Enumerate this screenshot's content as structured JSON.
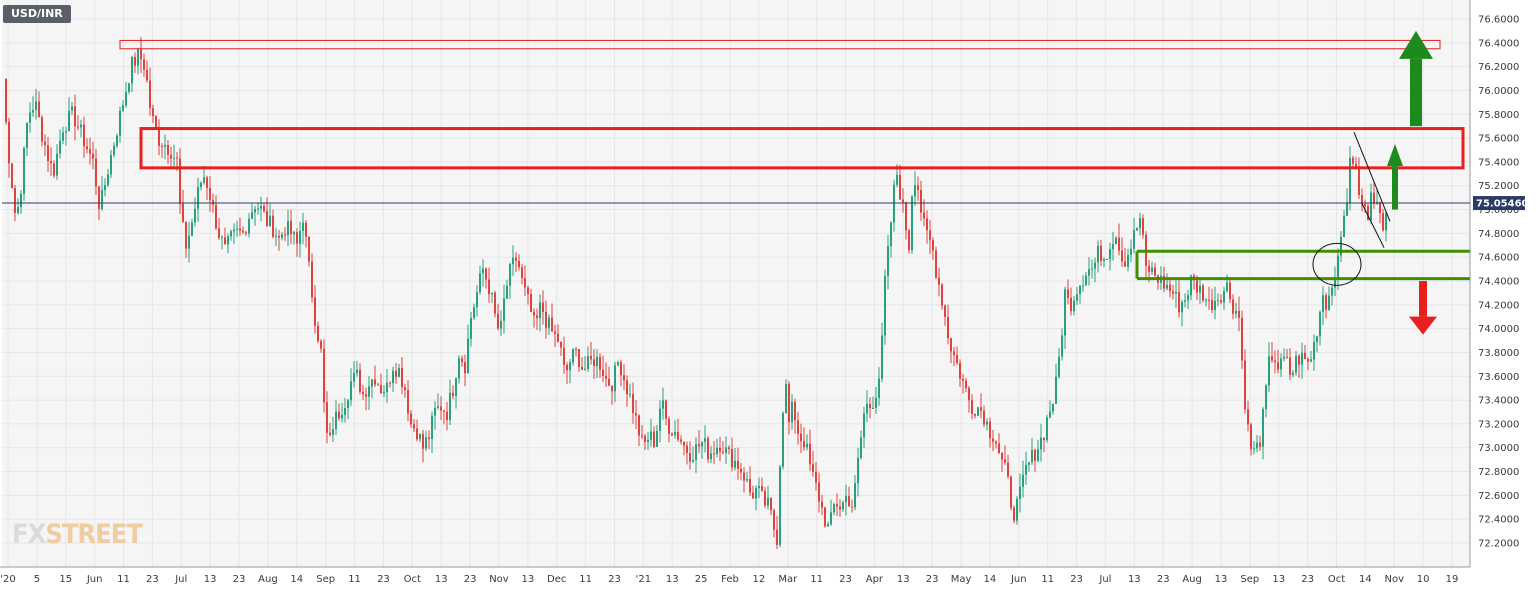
{
  "symbol": "USD/INR",
  "watermark": {
    "fx": "FX",
    "street": "STREET"
  },
  "colors": {
    "up": "#26a17b",
    "down": "#e0433f",
    "grid": "#e6e6e6",
    "background": "#f5f5f5",
    "current_price_line": "#2b3a67",
    "resistance_zone": "#e61f1f",
    "support_zone": "#3f8f00",
    "arrow_up": "#1d8a1d",
    "arrow_down": "#e61f1f"
  },
  "current_price": "75.05460",
  "chart_data": {
    "type": "candlestick",
    "title": "USD/INR",
    "ylim": [
      72.0,
      76.7
    ],
    "y_ticks": [
      "72.2000",
      "72.4000",
      "72.6000",
      "72.8000",
      "73.0000",
      "73.2000",
      "73.4000",
      "73.6000",
      "73.8000",
      "74.0000",
      "74.2000",
      "74.4000",
      "74.6000",
      "74.8000",
      "75.0000",
      "75.2000",
      "75.4000",
      "75.6000",
      "75.8000",
      "76.0000",
      "76.2000",
      "76.4000",
      "76.6000"
    ],
    "x_ticks": [
      "'20",
      "5",
      "15",
      "Jun",
      "11",
      "23",
      "Jul",
      "13",
      "23",
      "Aug",
      "14",
      "Sep",
      "11",
      "23",
      "Oct",
      "13",
      "23",
      "Nov",
      "13",
      "Dec",
      "11",
      "23",
      "'21",
      "13",
      "25",
      "Feb",
      "12",
      "Mar",
      "11",
      "23",
      "Apr",
      "13",
      "23",
      "May",
      "14",
      "Jun",
      "11",
      "23",
      "Jul",
      "13",
      "23",
      "Aug",
      "13",
      "Sep",
      "13",
      "23",
      "Oct",
      "14",
      "Nov",
      "10",
      "19"
    ],
    "close_path": [
      [
        0,
        76.1
      ],
      [
        4,
        75.6
      ],
      [
        8,
        75.3
      ],
      [
        13,
        74.9
      ],
      [
        18,
        75.2
      ],
      [
        25,
        75.8
      ],
      [
        32,
        75.9
      ],
      [
        40,
        75.6
      ],
      [
        50,
        75.3
      ],
      [
        60,
        75.7
      ],
      [
        70,
        75.8
      ],
      [
        80,
        75.6
      ],
      [
        90,
        75.4
      ],
      [
        97,
        75.0
      ],
      [
        104,
        75.3
      ],
      [
        112,
        75.6
      ],
      [
        120,
        75.9
      ],
      [
        128,
        76.2
      ],
      [
        136,
        76.3
      ],
      [
        142,
        76.2
      ],
      [
        148,
        75.8
      ],
      [
        155,
        75.6
      ],
      [
        162,
        75.55
      ],
      [
        168,
        75.5
      ],
      [
        174,
        75.4
      ],
      [
        178,
        74.9
      ],
      [
        183,
        74.7
      ],
      [
        188,
        74.85
      ],
      [
        194,
        75.1
      ],
      [
        200,
        75.3
      ],
      [
        205,
        75.2
      ],
      [
        210,
        75.0
      ],
      [
        216,
        74.8
      ],
      [
        222,
        74.65
      ],
      [
        228,
        74.75
      ],
      [
        234,
        74.8
      ],
      [
        240,
        74.8
      ],
      [
        246,
        74.95
      ],
      [
        252,
        75.05
      ],
      [
        258,
        75.0
      ],
      [
        264,
        74.9
      ],
      [
        270,
        74.85
      ],
      [
        276,
        74.75
      ],
      [
        282,
        74.85
      ],
      [
        288,
        74.8
      ],
      [
        294,
        74.7
      ],
      [
        300,
        74.95
      ],
      [
        306,
        74.5
      ],
      [
        312,
        74.1
      ],
      [
        318,
        73.8
      ],
      [
        322,
        73.2
      ],
      [
        326,
        73.0
      ],
      [
        330,
        73.2
      ],
      [
        336,
        73.3
      ],
      [
        342,
        73.4
      ],
      [
        348,
        73.55
      ],
      [
        354,
        73.6
      ],
      [
        360,
        73.45
      ],
      [
        366,
        73.55
      ],
      [
        372,
        73.6
      ],
      [
        378,
        73.5
      ],
      [
        384,
        73.5
      ],
      [
        390,
        73.7
      ],
      [
        396,
        73.65
      ],
      [
        402,
        73.5
      ],
      [
        408,
        73.2
      ],
      [
        414,
        73.15
      ],
      [
        420,
        73.0
      ],
      [
        426,
        73.1
      ],
      [
        432,
        73.3
      ],
      [
        438,
        73.35
      ],
      [
        444,
        73.3
      ],
      [
        450,
        73.5
      ],
      [
        456,
        73.8
      ],
      [
        462,
        73.7
      ],
      [
        468,
        74.1
      ],
      [
        474,
        74.3
      ],
      [
        480,
        74.5
      ],
      [
        486,
        74.35
      ],
      [
        490,
        74.2
      ],
      [
        494,
        74.0
      ],
      [
        498,
        74.0
      ],
      [
        502,
        74.3
      ],
      [
        508,
        74.5
      ],
      [
        514,
        74.6
      ],
      [
        520,
        74.35
      ],
      [
        526,
        74.2
      ],
      [
        532,
        74.0
      ],
      [
        538,
        74.2
      ],
      [
        544,
        74.05
      ],
      [
        550,
        73.95
      ],
      [
        556,
        73.9
      ],
      [
        562,
        73.6
      ],
      [
        568,
        73.75
      ],
      [
        574,
        73.8
      ],
      [
        580,
        73.65
      ],
      [
        586,
        73.7
      ],
      [
        592,
        73.75
      ],
      [
        598,
        73.7
      ],
      [
        604,
        73.55
      ],
      [
        610,
        73.55
      ],
      [
        616,
        73.75
      ],
      [
        622,
        73.55
      ],
      [
        628,
        73.4
      ],
      [
        634,
        73.2
      ],
      [
        640,
        73.0
      ],
      [
        646,
        73.1
      ],
      [
        652,
        73.05
      ],
      [
        658,
        73.4
      ],
      [
        664,
        73.2
      ],
      [
        670,
        73.15
      ],
      [
        676,
        73.1
      ],
      [
        682,
        73.0
      ],
      [
        688,
        72.95
      ],
      [
        694,
        73.0
      ],
      [
        700,
        73.05
      ],
      [
        706,
        72.95
      ],
      [
        712,
        73.0
      ],
      [
        718,
        73.05
      ],
      [
        724,
        72.95
      ],
      [
        730,
        72.9
      ],
      [
        736,
        72.85
      ],
      [
        742,
        72.75
      ],
      [
        748,
        72.6
      ],
      [
        754,
        72.65
      ],
      [
        760,
        72.55
      ],
      [
        766,
        72.5
      ],
      [
        770,
        72.35
      ],
      [
        774,
        72.25
      ],
      [
        778,
        73.1
      ],
      [
        782,
        73.6
      ],
      [
        786,
        73.2
      ],
      [
        790,
        73.35
      ],
      [
        796,
        73.1
      ],
      [
        802,
        73.05
      ],
      [
        808,
        72.8
      ],
      [
        814,
        72.65
      ],
      [
        820,
        72.45
      ],
      [
        826,
        72.3
      ],
      [
        832,
        72.55
      ],
      [
        838,
        72.5
      ],
      [
        844,
        72.6
      ],
      [
        850,
        72.5
      ],
      [
        856,
        72.95
      ],
      [
        862,
        73.35
      ],
      [
        868,
        73.35
      ],
      [
        874,
        73.5
      ],
      [
        878,
        73.7
      ],
      [
        882,
        74.4
      ],
      [
        886,
        74.7
      ],
      [
        890,
        75.1
      ],
      [
        894,
        75.3
      ],
      [
        898,
        75.1
      ],
      [
        902,
        74.9
      ],
      [
        906,
        74.7
      ],
      [
        910,
        75.3
      ],
      [
        914,
        75.25
      ],
      [
        918,
        75.0
      ],
      [
        922,
        74.8
      ],
      [
        926,
        74.75
      ],
      [
        930,
        74.65
      ],
      [
        934,
        74.45
      ],
      [
        938,
        74.3
      ],
      [
        942,
        74.1
      ],
      [
        946,
        73.9
      ],
      [
        950,
        73.8
      ],
      [
        956,
        73.65
      ],
      [
        962,
        73.5
      ],
      [
        968,
        73.35
      ],
      [
        974,
        73.35
      ],
      [
        980,
        73.3
      ],
      [
        986,
        73.15
      ],
      [
        992,
        73.1
      ],
      [
        998,
        72.9
      ],
      [
        1004,
        72.75
      ],
      [
        1010,
        72.45
      ],
      [
        1016,
        72.55
      ],
      [
        1022,
        72.8
      ],
      [
        1028,
        72.9
      ],
      [
        1034,
        73.0
      ],
      [
        1040,
        73.1
      ],
      [
        1046,
        73.3
      ],
      [
        1052,
        73.45
      ],
      [
        1058,
        73.9
      ],
      [
        1062,
        74.3
      ],
      [
        1066,
        74.2
      ],
      [
        1070,
        74.25
      ],
      [
        1074,
        74.35
      ],
      [
        1078,
        74.4
      ],
      [
        1084,
        74.5
      ],
      [
        1090,
        74.5
      ],
      [
        1096,
        74.65
      ],
      [
        1102,
        74.6
      ],
      [
        1108,
        74.75
      ],
      [
        1114,
        74.8
      ],
      [
        1120,
        74.55
      ],
      [
        1126,
        74.65
      ],
      [
        1132,
        74.8
      ],
      [
        1138,
        74.95
      ],
      [
        1142,
        74.5
      ],
      [
        1146,
        74.5
      ],
      [
        1152,
        74.45
      ],
      [
        1158,
        74.4
      ],
      [
        1164,
        74.35
      ],
      [
        1170,
        74.3
      ],
      [
        1176,
        74.2
      ],
      [
        1182,
        74.25
      ],
      [
        1188,
        74.4
      ],
      [
        1194,
        74.35
      ],
      [
        1200,
        74.3
      ],
      [
        1206,
        74.2
      ],
      [
        1212,
        74.25
      ],
      [
        1218,
        74.3
      ],
      [
        1224,
        74.35
      ],
      [
        1230,
        74.2
      ],
      [
        1236,
        74.1
      ],
      [
        1240,
        73.6
      ],
      [
        1244,
        73.2
      ],
      [
        1248,
        73.0
      ],
      [
        1252,
        72.95
      ],
      [
        1258,
        73.1
      ],
      [
        1262,
        73.4
      ],
      [
        1266,
        73.7
      ],
      [
        1270,
        73.8
      ],
      [
        1276,
        73.65
      ],
      [
        1282,
        73.75
      ],
      [
        1288,
        73.6
      ],
      [
        1294,
        73.75
      ],
      [
        1300,
        73.75
      ],
      [
        1306,
        73.7
      ],
      [
        1312,
        73.9
      ],
      [
        1316,
        74.1
      ],
      [
        1320,
        74.3
      ],
      [
        1324,
        74.2
      ],
      [
        1328,
        74.35
      ],
      [
        1332,
        74.5
      ],
      [
        1336,
        74.55
      ],
      [
        1340,
        74.95
      ],
      [
        1344,
        75.1
      ],
      [
        1348,
        75.45
      ],
      [
        1352,
        75.4
      ],
      [
        1356,
        75.1
      ],
      [
        1360,
        75.05
      ],
      [
        1364,
        74.9
      ],
      [
        1368,
        75.2
      ],
      [
        1372,
        75.1
      ],
      [
        1376,
        74.95
      ],
      [
        1380,
        74.8
      ],
      [
        1383,
        75.05
      ]
    ]
  },
  "annotations": {
    "resistance_zone_top": [
      76.35,
      76.42
    ],
    "resistance_zone_main": [
      75.35,
      75.68
    ],
    "support_zone": [
      74.42,
      74.65
    ],
    "wedge_upper": [
      [
        1352,
        75.65
      ],
      [
        1388,
        74.9
      ]
    ],
    "wedge_lower": [
      [
        1360,
        75.05
      ],
      [
        1382,
        74.68
      ]
    ],
    "circle_center": [
      1335,
      74.54
    ],
    "arrow_large_up": {
      "x": 1416,
      "from": 75.7,
      "to": 76.5
    },
    "arrow_small_up": {
      "x": 1395,
      "from": 75.0,
      "to": 75.55
    },
    "arrow_down": {
      "x": 1423,
      "from": 74.4,
      "to": 73.95
    }
  }
}
